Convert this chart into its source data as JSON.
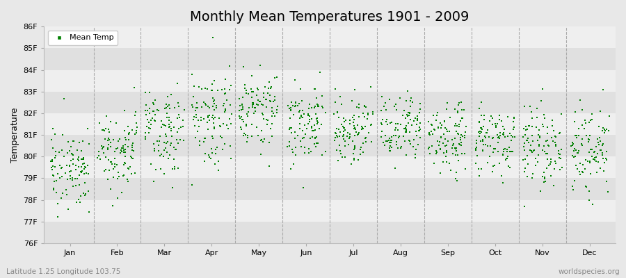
{
  "title": "Monthly Mean Temperatures 1901 - 2009",
  "ylabel": "Temperature",
  "xlabel": "",
  "ylim": [
    76,
    86
  ],
  "ytick_labels": [
    "76F",
    "77F",
    "78F",
    "79F",
    "80F",
    "81F",
    "82F",
    "83F",
    "84F",
    "85F",
    "86F"
  ],
  "ytick_values": [
    76,
    77,
    78,
    79,
    80,
    81,
    82,
    83,
    84,
    85,
    86
  ],
  "months": [
    "Jan",
    "Feb",
    "Mar",
    "Apr",
    "May",
    "Jun",
    "Jul",
    "Aug",
    "Sep",
    "Oct",
    "Nov",
    "Dec"
  ],
  "n_years": 109,
  "marker_color": "#008000",
  "marker": "s",
  "marker_size": 3,
  "bg_color": "#E8E8E8",
  "band_light": "#EFEFEF",
  "band_dark": "#E0E0E0",
  "title_fontsize": 14,
  "axis_label_fontsize": 9,
  "tick_fontsize": 8,
  "legend_label": "Mean Temp",
  "footer_left": "Latitude 1.25 Longitude 103.75",
  "footer_right": "worldspecies.org",
  "footer_fontsize": 7.5,
  "monthly_means": [
    79.5,
    80.5,
    81.2,
    81.8,
    82.3,
    81.5,
    81.2,
    81.2,
    80.8,
    80.7,
    80.5,
    80.3
  ],
  "monthly_stds": [
    1.0,
    1.0,
    0.9,
    1.0,
    0.9,
    0.8,
    0.8,
    0.8,
    0.7,
    0.8,
    0.9,
    1.0
  ],
  "seed": 17
}
